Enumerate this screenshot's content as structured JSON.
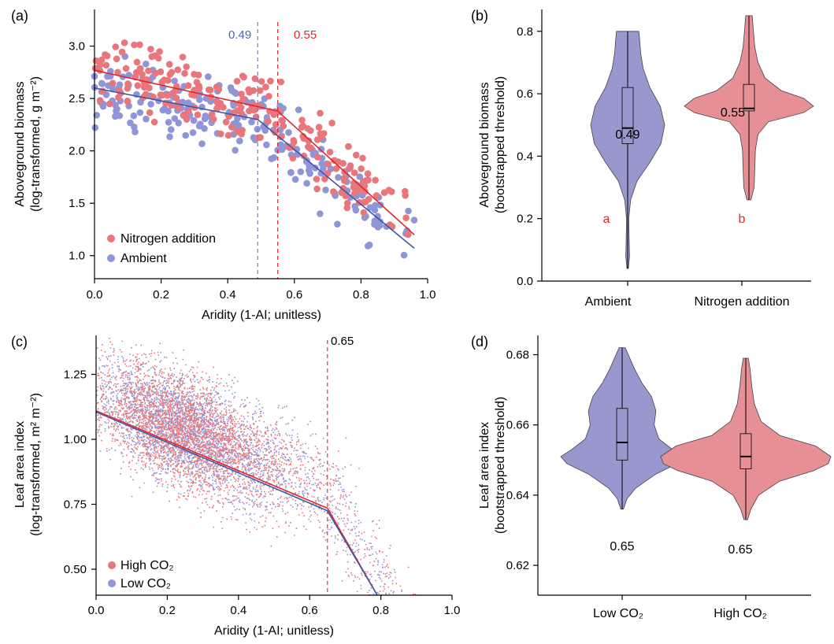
{
  "colors": {
    "red": "#e8767a",
    "blue": "#8f95d6",
    "red_line": "#e0262a",
    "blue_line": "#3e57a7",
    "red_violin": "#e69096",
    "blue_violin": "#9898cf",
    "letter_red": "#e0262a"
  },
  "chart_data": [
    {
      "panel": "(a)",
      "type": "scatter",
      "xlabel": "Aridity (1-AI; unitless)",
      "ylabel_lines": [
        "Aboveground biomass",
        "(log-transformed, g m⁻²)"
      ],
      "xlim": [
        0,
        1.0
      ],
      "ylim": [
        0.78,
        3.35
      ],
      "xticks": [
        "0.0",
        "0.2",
        "0.4",
        "0.6",
        "0.8",
        "1.0"
      ],
      "yticks": [
        "1.0",
        "1.5",
        "2.0",
        "2.5",
        "3.0"
      ],
      "legend": [
        "Nitrogen addition",
        "Ambient"
      ],
      "thresholds": [
        {
          "label": "0.49",
          "x": 0.49,
          "color_key": "blue"
        },
        {
          "label": "0.55",
          "x": 0.55,
          "color_key": "red"
        }
      ],
      "series": [
        {
          "name": "Nitrogen addition",
          "color_key": "red",
          "fit": [
            [
              0.0,
              2.77
            ],
            [
              0.55,
              2.38
            ],
            [
              0.96,
              1.2
            ]
          ]
        },
        {
          "name": "Ambient",
          "color_key": "blue",
          "fit": [
            [
              0.0,
              2.6
            ],
            [
              0.49,
              2.3
            ],
            [
              0.96,
              1.07
            ]
          ]
        }
      ],
      "points_note": "approx. 300 points per series, 0.0–0.96 aridity"
    },
    {
      "panel": "(b)",
      "type": "violin",
      "ylabel_lines": [
        "Aboveground biomass",
        "(bootstrapped threshold)"
      ],
      "ylim": [
        0.0,
        0.87
      ],
      "yticks": [
        "0.0",
        "0.2",
        "0.4",
        "0.6",
        "0.8"
      ],
      "categories": [
        "Ambient",
        "Nitrogen addition"
      ],
      "medians": [
        "0.49",
        "0.55"
      ],
      "letters": [
        "a",
        "b"
      ],
      "boxes": [
        {
          "q1": 0.44,
          "median": 0.49,
          "q3": 0.62,
          "min": 0.04,
          "max": 0.8
        },
        {
          "q1": 0.545,
          "median": 0.553,
          "q3": 0.63,
          "min": 0.26,
          "max": 0.85
        }
      ]
    },
    {
      "panel": "(c)",
      "type": "scatter",
      "xlabel": "Aridity (1-AI; unitless)",
      "ylabel_lines": [
        "Leaf area index",
        "(log-transformed, m² m⁻²)"
      ],
      "xlim": [
        0,
        1.0
      ],
      "ylim": [
        0.4,
        1.4
      ],
      "xticks": [
        "0.0",
        "0.2",
        "0.4",
        "0.6",
        "0.8",
        "1.0"
      ],
      "yticks": [
        "0.50",
        "0.75",
        "1.00",
        "1.25"
      ],
      "legend": [
        "High CO₂",
        "Low CO₂"
      ],
      "thresholds": [
        {
          "label": "0.65",
          "x": 0.65,
          "color_key": "red"
        }
      ],
      "series": [
        {
          "name": "High CO₂",
          "color_key": "red",
          "fit": [
            [
              0.0,
              1.11
            ],
            [
              0.65,
              0.735
            ],
            [
              0.79,
              0.4
            ]
          ]
        },
        {
          "name": "Low CO₂",
          "color_key": "blue",
          "fit": [
            [
              0.0,
              1.105
            ],
            [
              0.65,
              0.725
            ],
            [
              0.79,
              0.4
            ]
          ]
        }
      ]
    },
    {
      "panel": "(d)",
      "type": "violin",
      "ylabel_lines": [
        "Leaf area index",
        "(bootstrapped threshold)"
      ],
      "ylim": [
        0.6115,
        0.6855
      ],
      "yticks": [
        "0.62",
        "0.64",
        "0.66",
        "0.68"
      ],
      "categories": [
        "Low CO₂",
        "High CO₂"
      ],
      "medians": [
        "0.65",
        "0.65"
      ],
      "boxes": [
        {
          "q1": 0.65,
          "median": 0.655,
          "q3": 0.6647,
          "min": 0.636,
          "max": 0.682
        },
        {
          "q1": 0.6475,
          "median": 0.651,
          "q3": 0.6575,
          "min": 0.633,
          "max": 0.679
        }
      ]
    }
  ]
}
